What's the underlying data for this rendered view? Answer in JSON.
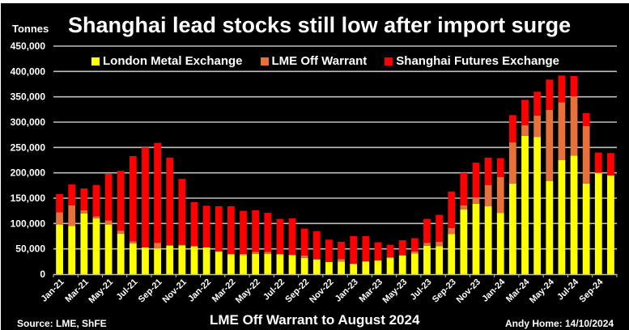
{
  "chart_data": {
    "type": "bar",
    "stacked": true,
    "title": "Shanghai lead stocks still low after import surge",
    "ylabel": "Tonnes",
    "xlabel": "",
    "subtitle": "LME Off Warrant to August 2024",
    "source": "Source: LME, ShFE",
    "credit": "Andy Home: 14/10/2024",
    "ylim": [
      0,
      450000
    ],
    "ytick_values": [
      0,
      50000,
      100000,
      150000,
      200000,
      250000,
      300000,
      350000,
      400000,
      450000
    ],
    "ytick_labels": [
      "0",
      "50,000",
      "100,000",
      "150,000",
      "200,000",
      "250,000",
      "300,000",
      "350,000",
      "400,000",
      "450,000"
    ],
    "grid": true,
    "legend_position": "top",
    "categories": [
      "Jan-21",
      "Feb-21",
      "Mar-21",
      "Apr-21",
      "May-21",
      "Jun-21",
      "Jul-21",
      "Aug-21",
      "Sep-21",
      "Oct-21",
      "Nov-21",
      "Dec-21",
      "Jan-22",
      "Feb-22",
      "Mar-22",
      "Apr-22",
      "May-22",
      "Jun-22",
      "Jul-22",
      "Aug-22",
      "Sep-22",
      "Oct-22",
      "Nov-22",
      "Dec-22",
      "Jan-23",
      "Feb-23",
      "Mar-23",
      "Apr-23",
      "May-23",
      "Jun-23",
      "Jul-23",
      "Aug-23",
      "Sep-23",
      "Oct-23",
      "Nov-23",
      "Dec-23",
      "Jan-24",
      "Feb-24",
      "Mar-24",
      "Apr-24",
      "May-24",
      "Jun-24",
      "Jul-24",
      "Aug-24",
      "Sep-24",
      "Oct-24"
    ],
    "xtick_labels": [
      "Jan-21",
      "Mar-21",
      "May-21",
      "Jul-21",
      "Sep-21",
      "Nov-21",
      "Jan-22",
      "Mar-22",
      "May-22",
      "Jul-22",
      "Sep-22",
      "Nov-22",
      "Jan-23",
      "Mar-23",
      "May-23",
      "Jul-23",
      "Sep-23",
      "Nov-23",
      "Jan-24",
      "Mar-24",
      "May-24",
      "Jul-24",
      "Sep-24"
    ],
    "series": [
      {
        "name": "London Metal Exchange",
        "color": "#FFFF00",
        "values": [
          98000,
          95000,
          120000,
          110000,
          98000,
          80000,
          61000,
          53000,
          51000,
          56000,
          57000,
          55000,
          53000,
          45000,
          39000,
          38000,
          40000,
          40000,
          39000,
          38000,
          32000,
          29000,
          24000,
          25000,
          20000,
          25000,
          27000,
          32000,
          37000,
          41000,
          56000,
          55000,
          79000,
          128000,
          139000,
          134000,
          121000,
          179000,
          273000,
          271000,
          184000,
          225000,
          234000,
          179000,
          200000,
          195000
        ]
      },
      {
        "name": "LME Off Warrant",
        "color": "#E8703A",
        "values": [
          24000,
          41000,
          6000,
          4000,
          8000,
          6000,
          4000,
          0,
          11000,
          2000,
          1000,
          0,
          0,
          0,
          1000,
          2000,
          4000,
          4000,
          1000,
          0,
          5000,
          1000,
          0,
          5000,
          1000,
          1000,
          0,
          2000,
          1000,
          4000,
          6000,
          9000,
          12000,
          8000,
          13000,
          42000,
          71000,
          81000,
          21000,
          42000,
          140000,
          114000,
          117000,
          113000,
          0,
          0
        ]
      },
      {
        "name": "Shanghai Futures Exchange",
        "color": "#FF0000",
        "values": [
          36000,
          41000,
          43000,
          62000,
          92000,
          118000,
          168000,
          197000,
          197000,
          172000,
          130000,
          87000,
          82000,
          89000,
          94000,
          85000,
          82000,
          77000,
          69000,
          72000,
          53000,
          55000,
          44000,
          34000,
          54000,
          49000,
          36000,
          24000,
          29000,
          26000,
          47000,
          53000,
          72000,
          64000,
          68000,
          54000,
          37000,
          54000,
          50000,
          47000,
          60000,
          53000,
          40000,
          26000,
          40000,
          44000
        ]
      }
    ]
  }
}
